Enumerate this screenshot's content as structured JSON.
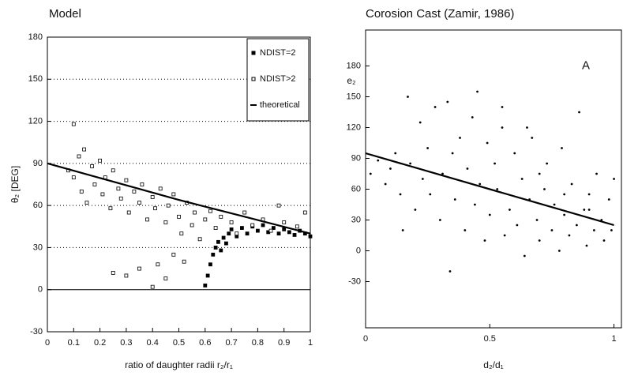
{
  "chart_data": [
    {
      "type": "scatter",
      "title": "Model",
      "xlabel": "ratio of daughter radii r₂/r₁",
      "ylabel": "θ₂ [DEG]",
      "xlim": [
        0,
        1
      ],
      "ylim": [
        -30,
        180
      ],
      "xticks": [
        0,
        0.1,
        0.2,
        0.3,
        0.4,
        0.5,
        0.6,
        0.7,
        0.8,
        0.9,
        1
      ],
      "yticks": [
        -30,
        0,
        30,
        60,
        90,
        120,
        150,
        180
      ],
      "grid": true,
      "zero_line": true,
      "legend": "upper right",
      "series": [
        {
          "name": "NDIST=2",
          "style": "filled-square",
          "color": "#000000",
          "x": [
            0.6,
            0.61,
            0.62,
            0.63,
            0.64,
            0.65,
            0.67,
            0.69,
            0.7,
            0.72,
            0.74,
            0.76,
            0.78,
            0.8,
            0.82,
            0.84,
            0.86,
            0.88,
            0.9,
            0.92,
            0.94,
            0.96,
            0.98,
            1.0,
            0.66,
            0.68
          ],
          "values": [
            3,
            10,
            18,
            25,
            30,
            34,
            37,
            40,
            43,
            38,
            44,
            40,
            45,
            42,
            46,
            41,
            44,
            40,
            43,
            41,
            39,
            42,
            40,
            38,
            28,
            33
          ]
        },
        {
          "name": "NDIST>2",
          "style": "open-square",
          "color": "#000000",
          "x": [
            0.08,
            0.1,
            0.1,
            0.12,
            0.13,
            0.14,
            0.15,
            0.17,
            0.18,
            0.2,
            0.21,
            0.22,
            0.24,
            0.25,
            0.27,
            0.28,
            0.3,
            0.31,
            0.33,
            0.35,
            0.36,
            0.38,
            0.4,
            0.41,
            0.43,
            0.45,
            0.46,
            0.48,
            0.5,
            0.51,
            0.53,
            0.55,
            0.56,
            0.58,
            0.6,
            0.62,
            0.64,
            0.66,
            0.7,
            0.72,
            0.75,
            0.78,
            0.82,
            0.85,
            0.88,
            0.9,
            0.95,
            0.98,
            0.3,
            0.35,
            0.4,
            0.42,
            0.45,
            0.48,
            0.52,
            0.25
          ],
          "values": [
            85,
            118,
            80,
            95,
            70,
            100,
            62,
            88,
            75,
            92,
            68,
            80,
            58,
            85,
            72,
            65,
            78,
            55,
            70,
            62,
            75,
            50,
            66,
            58,
            72,
            48,
            60,
            68,
            52,
            40,
            62,
            46,
            55,
            36,
            50,
            56,
            44,
            52,
            48,
            40,
            55,
            46,
            50,
            42,
            60,
            48,
            45,
            55,
            10,
            15,
            2,
            18,
            8,
            25,
            20,
            12
          ]
        },
        {
          "name": "theoretical",
          "style": "line",
          "color": "#000000",
          "x": [
            0,
            0.25,
            0.5,
            0.75,
            1
          ],
          "values": [
            90,
            77,
            64,
            52,
            40
          ]
        }
      ]
    },
    {
      "type": "scatter",
      "title": "Corosion Cast (Zamir, 1986)",
      "xlabel": "d₂/d₁",
      "ylabel": "e₂",
      "annotation": "A",
      "xlim": [
        0,
        1.03
      ],
      "ylim": [
        -75,
        215
      ],
      "xticks": [
        0,
        0.5,
        1
      ],
      "yticks": [
        -30,
        0,
        30,
        60,
        90,
        120,
        150,
        180
      ],
      "grid": false,
      "zero_line": false,
      "series": [
        {
          "style": "dot",
          "color": "#000000",
          "x": [
            0.02,
            0.05,
            0.08,
            0.1,
            0.12,
            0.14,
            0.15,
            0.17,
            0.18,
            0.2,
            0.22,
            0.23,
            0.25,
            0.26,
            0.28,
            0.3,
            0.31,
            0.33,
            0.34,
            0.35,
            0.36,
            0.38,
            0.4,
            0.41,
            0.43,
            0.44,
            0.46,
            0.48,
            0.49,
            0.5,
            0.52,
            0.53,
            0.55,
            0.56,
            0.58,
            0.6,
            0.61,
            0.63,
            0.64,
            0.66,
            0.67,
            0.69,
            0.7,
            0.72,
            0.73,
            0.75,
            0.76,
            0.78,
            0.79,
            0.8,
            0.82,
            0.83,
            0.85,
            0.86,
            0.88,
            0.89,
            0.9,
            0.92,
            0.93,
            0.95,
            0.96,
            0.98,
            0.99,
            1.0,
            0.45,
            0.55,
            0.65,
            0.7,
            0.8,
            0.9
          ],
          "values": [
            75,
            88,
            65,
            80,
            95,
            55,
            20,
            150,
            85,
            40,
            125,
            70,
            100,
            55,
            140,
            30,
            75,
            145,
            -20,
            95,
            50,
            110,
            20,
            80,
            130,
            45,
            65,
            10,
            105,
            35,
            85,
            60,
            120,
            15,
            40,
            95,
            25,
            70,
            -5,
            50,
            110,
            30,
            10,
            60,
            85,
            20,
            45,
            0,
            100,
            35,
            15,
            65,
            25,
            135,
            40,
            5,
            55,
            20,
            75,
            30,
            10,
            50,
            20,
            70,
            155,
            140,
            120,
            75,
            55,
            40
          ]
        },
        {
          "style": "line",
          "color": "#000000",
          "x": [
            0,
            1
          ],
          "values": [
            95,
            25
          ]
        }
      ]
    }
  ]
}
